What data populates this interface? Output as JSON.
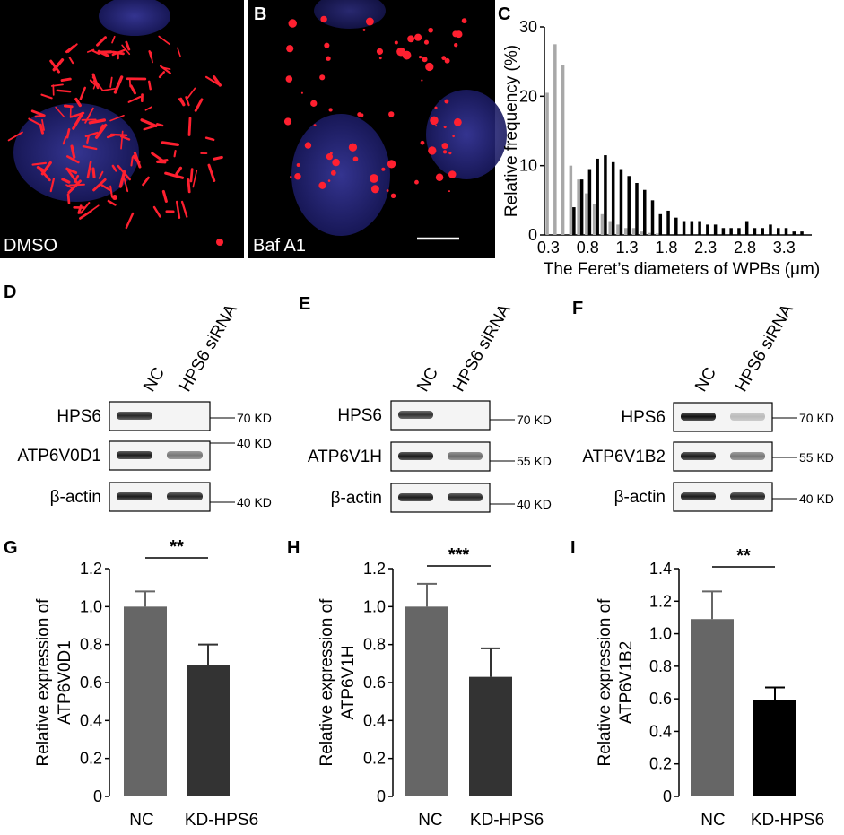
{
  "panels": {
    "A": {
      "label": "A",
      "caption": "DMSO"
    },
    "B": {
      "label": "B",
      "caption": "Baf A1"
    },
    "C": {
      "label": "C"
    },
    "D": {
      "label": "D",
      "lanes": [
        "NC",
        "HPS6 siRNA"
      ],
      "rows": [
        "HPS6",
        "ATP6V0D1",
        "β-actin"
      ],
      "markers": [
        "70 KD",
        "40 KD",
        "40 KD"
      ]
    },
    "E": {
      "label": "E",
      "lanes": [
        "NC",
        "HPS6 siRNA"
      ],
      "rows": [
        "HPS6",
        "ATP6V1H",
        "β-actin"
      ],
      "markers": [
        "70 KD",
        "55 KD",
        "40 KD"
      ]
    },
    "F": {
      "label": "F",
      "lanes": [
        "NC",
        "HPS6 siRNA"
      ],
      "rows": [
        "HPS6",
        "ATP6V1B2",
        "β-actin"
      ],
      "markers": [
        "70 KD",
        "55 KD",
        "40 KD"
      ]
    },
    "G": {
      "label": "G"
    },
    "H": {
      "label": "H"
    },
    "I": {
      "label": "I"
    }
  },
  "chart_data": [
    {
      "id": "C",
      "type": "bar",
      "xlabel": "The Feret’s diameters of WPBs (μm)",
      "ylabel": "Relative frequency (%)",
      "ylim": [
        0,
        30
      ],
      "yticks": [
        0,
        10,
        20,
        30
      ],
      "xticks": [
        "0.3",
        "0.8",
        "1.3",
        "1.8",
        "2.3",
        "2.8",
        "3.3"
      ],
      "bin_start": 0.3,
      "bin_width": 0.1,
      "series": [
        {
          "color": "#a8a8a8",
          "values": [
            20.5,
            27.5,
            24.5,
            10,
            8,
            6,
            4.5,
            3,
            2,
            1.5,
            1,
            1,
            0.5,
            0.3,
            0.2,
            0,
            0,
            0,
            0,
            0,
            0,
            0,
            0,
            0,
            0,
            0,
            0,
            0,
            0,
            0,
            0,
            0,
            0
          ]
        },
        {
          "color": "#000000",
          "values": [
            0,
            0,
            0,
            4,
            8,
            9.5,
            11,
            11.5,
            10.5,
            9.5,
            8.5,
            7.5,
            6.5,
            5,
            3,
            3.5,
            2.5,
            2,
            2,
            2,
            1.5,
            1.5,
            1,
            1,
            1,
            2,
            1,
            1,
            1.5,
            1,
            1,
            0.5,
            0.5
          ]
        }
      ]
    },
    {
      "id": "G",
      "type": "bar",
      "ylabel": "Relative expression of ATP6V0D1",
      "ylim": [
        0,
        1.2
      ],
      "yticks": [
        "0",
        "0.2",
        "0.4",
        "0.6",
        "0.8",
        "1.0",
        "1.2"
      ],
      "categories": [
        "NC",
        "KD-HPS6"
      ],
      "values": [
        1.0,
        0.69
      ],
      "errors": [
        0.08,
        0.11
      ],
      "colors": [
        "#666666",
        "#333333"
      ],
      "significance": "**"
    },
    {
      "id": "H",
      "type": "bar",
      "ylabel": "Relative expression of ATP6V1H",
      "ylim": [
        0,
        1.2
      ],
      "yticks": [
        "0",
        "0.2",
        "0.4",
        "0.6",
        "0.8",
        "1.0",
        "1.2"
      ],
      "categories": [
        "NC",
        "KD-HPS6"
      ],
      "values": [
        1.0,
        0.63
      ],
      "errors": [
        0.12,
        0.15
      ],
      "colors": [
        "#666666",
        "#333333"
      ],
      "significance": "***"
    },
    {
      "id": "I",
      "type": "bar",
      "ylabel": "Relative expression of ATP6V1B2",
      "ylim": [
        0,
        1.4
      ],
      "yticks": [
        "0",
        "0.2",
        "0.4",
        "0.6",
        "0.8",
        "1.0",
        "1.2",
        "1.4"
      ],
      "categories": [
        "NC",
        "KD-HPS6"
      ],
      "values": [
        1.09,
        0.59
      ],
      "errors": [
        0.17,
        0.08
      ],
      "colors": [
        "#666666",
        "#000000"
      ],
      "significance": "**"
    }
  ]
}
